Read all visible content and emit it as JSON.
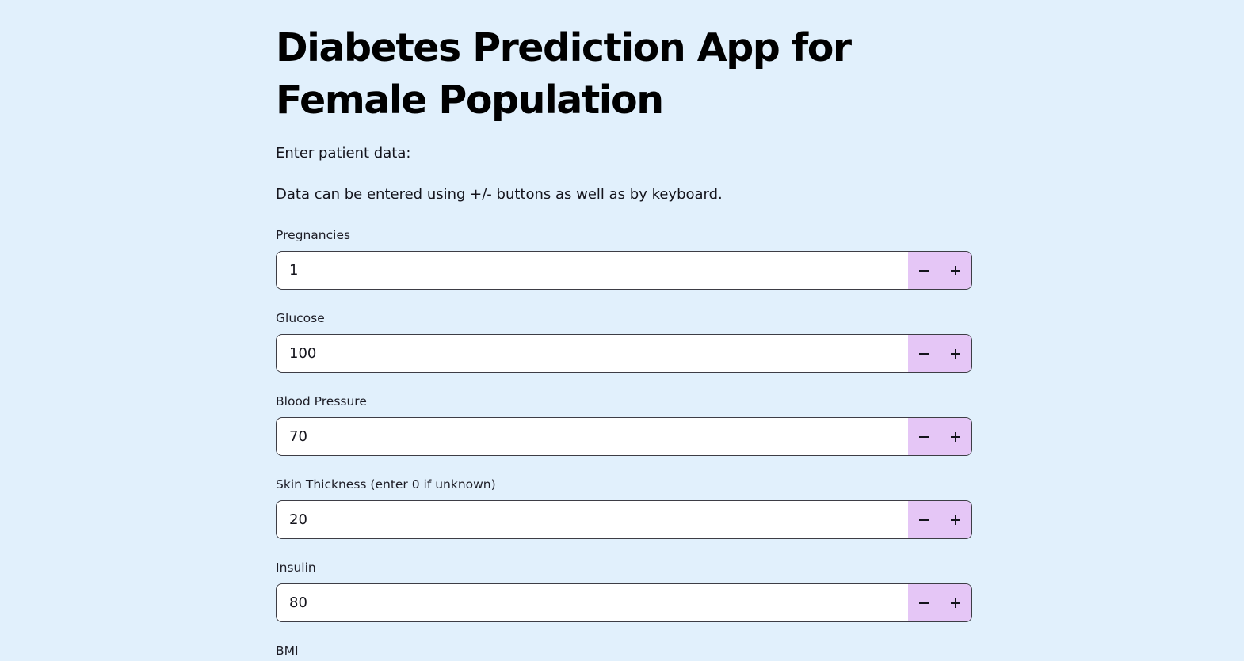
{
  "page": {
    "title": "Diabetes Prediction App for Female Population",
    "intro": "Enter patient data:",
    "hint": "Data can be entered using +/- buttons as well as by keyboard."
  },
  "fields": [
    {
      "label": "Pregnancies",
      "value": "1"
    },
    {
      "label": "Glucose",
      "value": "100"
    },
    {
      "label": "Blood Pressure",
      "value": "70"
    },
    {
      "label": "Skin Thickness (enter 0 if unknown)",
      "value": "20"
    },
    {
      "label": "Insulin",
      "value": "80"
    },
    {
      "label": "BMI"
    }
  ],
  "stepper": {
    "decrement_icon": "minus-icon",
    "increment_icon": "plus-icon"
  },
  "colors": {
    "background": "#e1f0fc",
    "input_background": "#ffffff",
    "stepper_background": "#e5c6f6",
    "text": "#0e0e14"
  }
}
